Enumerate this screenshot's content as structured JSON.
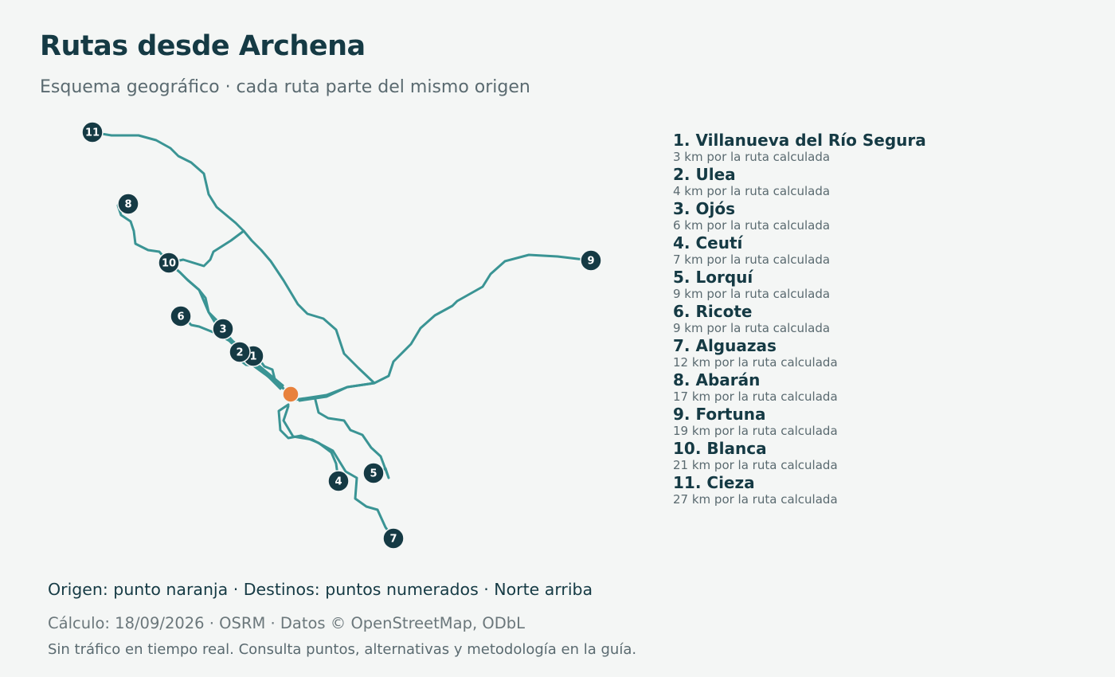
{
  "header": {
    "title": "Rutas desde Archena",
    "subtitle": "Esquema geográfico · cada ruta parte del mismo origen"
  },
  "colors": {
    "background": "#f4f6f5",
    "route": "#3a9494",
    "origin": "#e8813c",
    "marker": "#153a44",
    "text_dark": "#153a44",
    "text_muted": "#5a6a70"
  },
  "map": {
    "origin_label": "Archena",
    "north_up": true,
    "destinations": [
      {
        "num": "1",
        "name": "Villanueva del Río Segura",
        "distance": "3 km por la ruta calculada"
      },
      {
        "num": "2",
        "name": "Ulea",
        "distance": "4 km por la ruta calculada"
      },
      {
        "num": "3",
        "name": "Ojós",
        "distance": "6 km por la ruta calculada"
      },
      {
        "num": "4",
        "name": "Ceutí",
        "distance": "7 km por la ruta calculada"
      },
      {
        "num": "5",
        "name": "Lorquí",
        "distance": "9 km por la ruta calculada"
      },
      {
        "num": "6",
        "name": "Ricote",
        "distance": "9 km por la ruta calculada"
      },
      {
        "num": "7",
        "name": "Alguazas",
        "distance": "12 km por la ruta calculada"
      },
      {
        "num": "8",
        "name": "Abarán",
        "distance": "17 km por la ruta calculada"
      },
      {
        "num": "9",
        "name": "Fortuna",
        "distance": "19 km por la ruta calculada"
      },
      {
        "num": "10",
        "name": "Blanca",
        "distance": "21 km por la ruta calculada"
      },
      {
        "num": "11",
        "name": "Cieza",
        "distance": "27 km por la ruta calculada"
      }
    ]
  },
  "footer": {
    "key": "Origen: punto naranja · Destinos: puntos numerados · Norte arriba",
    "calc": "Cálculo: 18/09/2026 · OSRM · Datos © OpenStreetMap, ODbL",
    "note": "Sin tráfico en tiempo real. Consulta puntos, alternativas y metodología en la guía."
  }
}
